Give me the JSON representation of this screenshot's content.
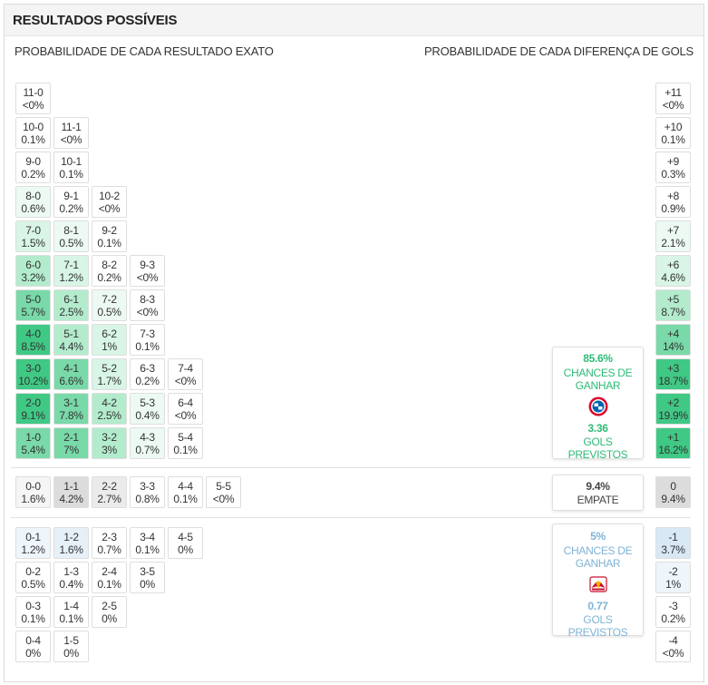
{
  "header": {
    "title": "RESULTADOS POSSÍVEIS"
  },
  "subtitles": {
    "left": "PROBABILIDADE DE CADA RESULTADO EXATO",
    "right": "PROBABILIDADE DE CADA DIFERENÇA DE GOLS"
  },
  "colors": {
    "home_accent": "#2dbb77",
    "away_accent": "#7fb3d6",
    "draw_text": "#444444"
  },
  "home_scores": [
    {
      "score": "11-0",
      "prob": "<0%",
      "p": 0.0
    },
    {
      "score": "10-0",
      "prob": "0.1%",
      "p": 0.1
    },
    {
      "score": "11-1",
      "prob": "<0%",
      "p": 0.0
    },
    {
      "score": "9-0",
      "prob": "0.2%",
      "p": 0.2
    },
    {
      "score": "10-1",
      "prob": "0.1%",
      "p": 0.1
    },
    {
      "score": "8-0",
      "prob": "0.6%",
      "p": 0.6
    },
    {
      "score": "9-1",
      "prob": "0.2%",
      "p": 0.2
    },
    {
      "score": "10-2",
      "prob": "<0%",
      "p": 0.0
    },
    {
      "score": "7-0",
      "prob": "1.5%",
      "p": 1.5
    },
    {
      "score": "8-1",
      "prob": "0.5%",
      "p": 0.5
    },
    {
      "score": "9-2",
      "prob": "0.1%",
      "p": 0.1
    },
    {
      "score": "6-0",
      "prob": "3.2%",
      "p": 3.2
    },
    {
      "score": "7-1",
      "prob": "1.2%",
      "p": 1.2
    },
    {
      "score": "8-2",
      "prob": "0.2%",
      "p": 0.2
    },
    {
      "score": "9-3",
      "prob": "<0%",
      "p": 0.0
    },
    {
      "score": "5-0",
      "prob": "5.7%",
      "p": 5.7
    },
    {
      "score": "6-1",
      "prob": "2.5%",
      "p": 2.5
    },
    {
      "score": "7-2",
      "prob": "0.5%",
      "p": 0.5
    },
    {
      "score": "8-3",
      "prob": "<0%",
      "p": 0.0
    },
    {
      "score": "4-0",
      "prob": "8.5%",
      "p": 8.5
    },
    {
      "score": "5-1",
      "prob": "4.4%",
      "p": 4.4
    },
    {
      "score": "6-2",
      "prob": "1%",
      "p": 1.0
    },
    {
      "score": "7-3",
      "prob": "0.1%",
      "p": 0.1
    },
    {
      "score": "3-0",
      "prob": "10.2%",
      "p": 10.2
    },
    {
      "score": "4-1",
      "prob": "6.6%",
      "p": 6.6
    },
    {
      "score": "5-2",
      "prob": "1.7%",
      "p": 1.7
    },
    {
      "score": "6-3",
      "prob": "0.2%",
      "p": 0.2
    },
    {
      "score": "7-4",
      "prob": "<0%",
      "p": 0.0
    },
    {
      "score": "2-0",
      "prob": "9.1%",
      "p": 9.1
    },
    {
      "score": "3-1",
      "prob": "7.8%",
      "p": 7.8
    },
    {
      "score": "4-2",
      "prob": "2.5%",
      "p": 2.5
    },
    {
      "score": "5-3",
      "prob": "0.4%",
      "p": 0.4
    },
    {
      "score": "6-4",
      "prob": "<0%",
      "p": 0.0
    },
    {
      "score": "1-0",
      "prob": "5.4%",
      "p": 5.4
    },
    {
      "score": "2-1",
      "prob": "7%",
      "p": 7.0
    },
    {
      "score": "3-2",
      "prob": "3%",
      "p": 3.0
    },
    {
      "score": "4-3",
      "prob": "0.7%",
      "p": 0.7
    },
    {
      "score": "5-4",
      "prob": "0.1%",
      "p": 0.1
    }
  ],
  "draw_scores": [
    {
      "score": "0-0",
      "prob": "1.6%",
      "p": 1.6
    },
    {
      "score": "1-1",
      "prob": "4.2%",
      "p": 4.2
    },
    {
      "score": "2-2",
      "prob": "2.7%",
      "p": 2.7
    },
    {
      "score": "3-3",
      "prob": "0.8%",
      "p": 0.8
    },
    {
      "score": "4-4",
      "prob": "0.1%",
      "p": 0.1
    },
    {
      "score": "5-5",
      "prob": "<0%",
      "p": 0.0
    }
  ],
  "away_scores": [
    {
      "score": "0-1",
      "prob": "1.2%",
      "p": 1.2
    },
    {
      "score": "1-2",
      "prob": "1.6%",
      "p": 1.6
    },
    {
      "score": "2-3",
      "prob": "0.7%",
      "p": 0.7
    },
    {
      "score": "3-4",
      "prob": "0.1%",
      "p": 0.1
    },
    {
      "score": "4-5",
      "prob": "0%",
      "p": 0.0
    },
    {
      "score": "0-2",
      "prob": "0.5%",
      "p": 0.5
    },
    {
      "score": "1-3",
      "prob": "0.4%",
      "p": 0.4
    },
    {
      "score": "2-4",
      "prob": "0.1%",
      "p": 0.1
    },
    {
      "score": "3-5",
      "prob": "0%",
      "p": 0.0
    },
    {
      "score": "0-3",
      "prob": "0.1%",
      "p": 0.1
    },
    {
      "score": "1-4",
      "prob": "0.1%",
      "p": 0.1
    },
    {
      "score": "2-5",
      "prob": "0%",
      "p": 0.0
    },
    {
      "score": "0-4",
      "prob": "0%",
      "p": 0.0
    },
    {
      "score": "1-5",
      "prob": "0%",
      "p": 0.0
    }
  ],
  "goal_diffs": [
    {
      "diff": "+11",
      "prob": "<0%",
      "p": 0.0,
      "side": "home"
    },
    {
      "diff": "+10",
      "prob": "0.1%",
      "p": 0.1,
      "side": "home"
    },
    {
      "diff": "+9",
      "prob": "0.3%",
      "p": 0.3,
      "side": "home"
    },
    {
      "diff": "+8",
      "prob": "0.9%",
      "p": 0.9,
      "side": "home"
    },
    {
      "diff": "+7",
      "prob": "2.1%",
      "p": 2.1,
      "side": "home"
    },
    {
      "diff": "+6",
      "prob": "4.6%",
      "p": 4.6,
      "side": "home"
    },
    {
      "diff": "+5",
      "prob": "8.7%",
      "p": 8.7,
      "side": "home"
    },
    {
      "diff": "+4",
      "prob": "14%",
      "p": 14.0,
      "side": "home"
    },
    {
      "diff": "+3",
      "prob": "18.7%",
      "p": 18.7,
      "side": "home"
    },
    {
      "diff": "+2",
      "prob": "19.9%",
      "p": 19.9,
      "side": "home"
    },
    {
      "diff": "+1",
      "prob": "16.2%",
      "p": 16.2,
      "side": "home"
    },
    {
      "diff": "0",
      "prob": "9.4%",
      "p": 9.4,
      "side": "draw"
    },
    {
      "diff": "-1",
      "prob": "3.7%",
      "p": 3.7,
      "side": "away"
    },
    {
      "diff": "-2",
      "prob": "1%",
      "p": 1.0,
      "side": "away"
    },
    {
      "diff": "-3",
      "prob": "0.2%",
      "p": 0.2,
      "side": "away"
    },
    {
      "diff": "-4",
      "prob": "<0%",
      "p": 0.0,
      "side": "away"
    }
  ],
  "home_card": {
    "win_pct": "85.6%",
    "win_label": "CHANCES DE GANHAR",
    "logo": "bayern-munich-crest-icon",
    "goals": "3.36",
    "goals_label": "GOLS PREVISTOS"
  },
  "draw_card": {
    "pct": "9.4%",
    "label": "EMPATE"
  },
  "away_card": {
    "win_pct": "5%",
    "win_label": "CHANCES DE GANHAR",
    "logo": "rb-leipzig-crest-icon",
    "goals": "0.77",
    "goals_label": "GOLS PREVISTOS"
  }
}
